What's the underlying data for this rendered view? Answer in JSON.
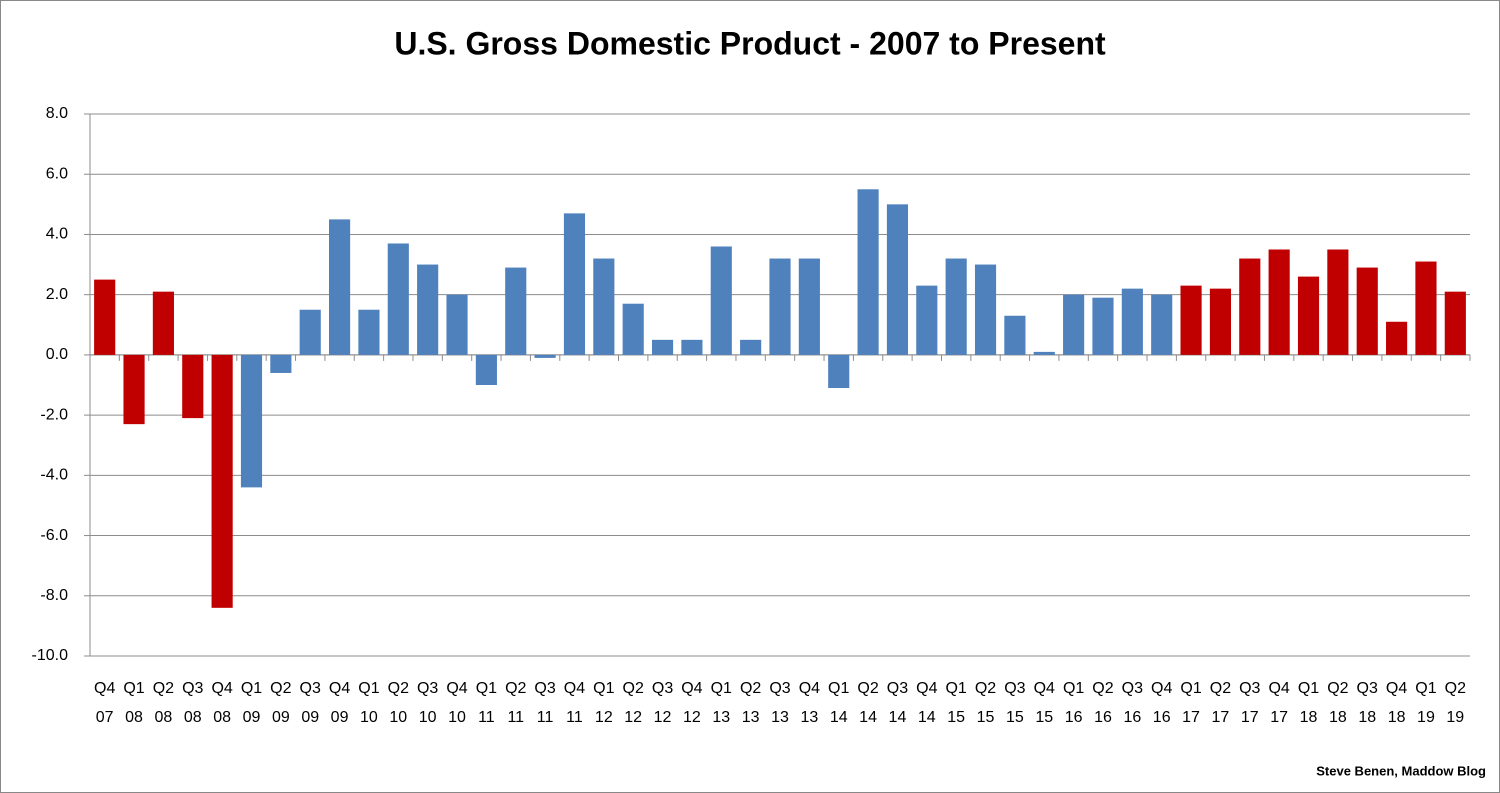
{
  "chart_data": {
    "type": "bar",
    "title": "U.S. Gross Domestic Product - 2007 to Present",
    "credit": "Steve Benen, Maddow Blog",
    "categories": [
      [
        "Q4",
        "07"
      ],
      [
        "Q1",
        "08"
      ],
      [
        "Q2",
        "08"
      ],
      [
        "Q3",
        "08"
      ],
      [
        "Q4",
        "08"
      ],
      [
        "Q1",
        "09"
      ],
      [
        "Q2",
        "09"
      ],
      [
        "Q3",
        "09"
      ],
      [
        "Q4",
        "09"
      ],
      [
        "Q1",
        "10"
      ],
      [
        "Q2",
        "10"
      ],
      [
        "Q3",
        "10"
      ],
      [
        "Q4",
        "10"
      ],
      [
        "Q1",
        "11"
      ],
      [
        "Q2",
        "11"
      ],
      [
        "Q3",
        "11"
      ],
      [
        "Q4",
        "11"
      ],
      [
        "Q1",
        "12"
      ],
      [
        "Q2",
        "12"
      ],
      [
        "Q3",
        "12"
      ],
      [
        "Q4",
        "12"
      ],
      [
        "Q1",
        "13"
      ],
      [
        "Q2",
        "13"
      ],
      [
        "Q3",
        "13"
      ],
      [
        "Q4",
        "13"
      ],
      [
        "Q1",
        "14"
      ],
      [
        "Q2",
        "14"
      ],
      [
        "Q3",
        "14"
      ],
      [
        "Q4",
        "14"
      ],
      [
        "Q1",
        "15"
      ],
      [
        "Q2",
        "15"
      ],
      [
        "Q3",
        "15"
      ],
      [
        "Q4",
        "15"
      ],
      [
        "Q1",
        "16"
      ],
      [
        "Q2",
        "16"
      ],
      [
        "Q3",
        "16"
      ],
      [
        "Q4",
        "16"
      ],
      [
        "Q1",
        "17"
      ],
      [
        "Q2",
        "17"
      ],
      [
        "Q3",
        "17"
      ],
      [
        "Q4",
        "17"
      ],
      [
        "Q1",
        "18"
      ],
      [
        "Q2",
        "18"
      ],
      [
        "Q3",
        "18"
      ],
      [
        "Q4",
        "18"
      ],
      [
        "Q1",
        "19"
      ],
      [
        "Q2",
        "19"
      ]
    ],
    "values": [
      2.5,
      -2.3,
      2.1,
      -2.1,
      -8.4,
      -4.4,
      -0.6,
      1.5,
      4.5,
      1.5,
      3.7,
      3.0,
      2.0,
      -1.0,
      2.9,
      -0.1,
      4.7,
      3.2,
      1.7,
      0.5,
      0.5,
      3.6,
      0.5,
      3.2,
      3.2,
      -1.1,
      5.5,
      5.0,
      2.3,
      3.2,
      3.0,
      1.3,
      0.1,
      2.0,
      1.9,
      2.2,
      2.0,
      2.3,
      2.2,
      3.2,
      3.5,
      2.6,
      3.5,
      2.9,
      1.1,
      3.1,
      2.1
    ],
    "colors": [
      "#c00000",
      "#c00000",
      "#c00000",
      "#c00000",
      "#c00000",
      "#4f81bd",
      "#4f81bd",
      "#4f81bd",
      "#4f81bd",
      "#4f81bd",
      "#4f81bd",
      "#4f81bd",
      "#4f81bd",
      "#4f81bd",
      "#4f81bd",
      "#4f81bd",
      "#4f81bd",
      "#4f81bd",
      "#4f81bd",
      "#4f81bd",
      "#4f81bd",
      "#4f81bd",
      "#4f81bd",
      "#4f81bd",
      "#4f81bd",
      "#4f81bd",
      "#4f81bd",
      "#4f81bd",
      "#4f81bd",
      "#4f81bd",
      "#4f81bd",
      "#4f81bd",
      "#4f81bd",
      "#4f81bd",
      "#4f81bd",
      "#4f81bd",
      "#4f81bd",
      "#c00000",
      "#c00000",
      "#c00000",
      "#c00000",
      "#c00000",
      "#c00000",
      "#c00000",
      "#c00000",
      "#c00000",
      "#c00000"
    ],
    "ylim": [
      -10,
      8
    ],
    "yticks": [
      {
        "value": -10,
        "label": "-10.0"
      },
      {
        "value": -8,
        "label": "-8.0"
      },
      {
        "value": -6,
        "label": "-6.0"
      },
      {
        "value": -4,
        "label": "-4.0"
      },
      {
        "value": -2,
        "label": "-2.0"
      },
      {
        "value": 0,
        "label": "0.0"
      },
      {
        "value": 2,
        "label": "2.0"
      },
      {
        "value": 4,
        "label": "4.0"
      },
      {
        "value": 6,
        "label": "6.0"
      },
      {
        "value": 8,
        "label": "8.0"
      }
    ],
    "grid": true
  }
}
